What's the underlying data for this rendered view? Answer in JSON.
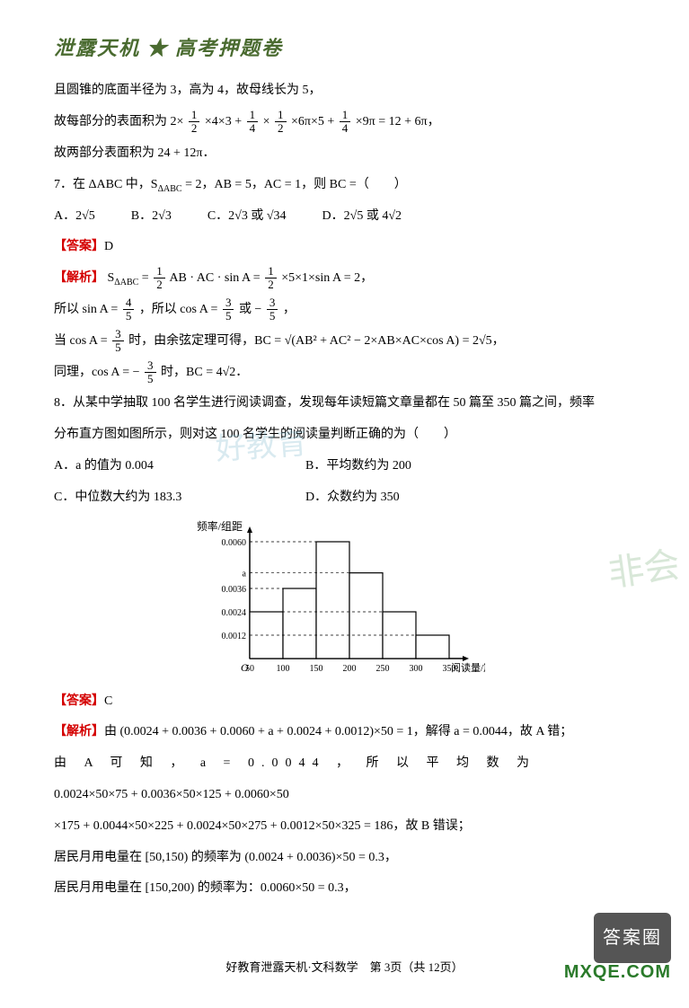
{
  "header": "泄露天机 ★ 高考押题卷",
  "p_cone1": "且圆锥的底面半径为 3，高为 4，故母线长为 5，",
  "p_cone2_a": "故每部分的表面积为 2×",
  "p_cone2_b": "×4×3 + ",
  "p_cone2_c": "×",
  "p_cone2_d": "×6π×5 + ",
  "p_cone2_e": "×9π = 12 + 6π，",
  "p_cone3": "故两部分表面积为 24 + 12π．",
  "q7": "7．在 ΔABC 中，S",
  "q7_sub": "ΔABC",
  "q7b": " = 2，AB = 5，AC = 1，则 BC =（　　）",
  "q7A": "A．2√5",
  "q7B": "B．2√3",
  "q7C": "C．2√3 或 √34",
  "q7D": "D．2√5 或 4√2",
  "ans_label": "【答案】",
  "ans7": "D",
  "exp_label": "【解析】",
  "exp7a": "S",
  "exp7a_sub": "ΔABC",
  "exp7a2": " = ",
  "exp7a3": "AB · AC · sin A = ",
  "exp7a4": "×5×1×sin A = 2，",
  "exp7b1": "所以 sin A = ",
  "exp7b2": "，所以 cos A = ",
  "exp7b3": " 或 −",
  "exp7b4": "，",
  "exp7c1": "当 cos A = ",
  "exp7c2": " 时，由余弦定理可得，BC = √(AB² + AC² − 2×AB×AC×cos A) = 2√5，",
  "exp7d1": "同理，cos A = −",
  "exp7d2": " 时，BC = 4√2．",
  "q8a": "8．从某中学抽取 100 名学生进行阅读调查，发现每年读短篇文章量都在 50 篇至 350 篇之间，频率",
  "q8b": "分布直方图如图所示，则对这 100 名学生的阅读量判断正确的为（　　）",
  "q8A": "A．a 的值为 0.004",
  "q8B": "B．平均数约为 200",
  "q8C": "C．中位数大约为 183.3",
  "q8D": "D．众数约为 350",
  "histogram": {
    "ylabel": "频率/组距",
    "xlabel": "阅读量/篇",
    "y_ticks": [
      "0.0012",
      "0.0024",
      "0.0036",
      "a",
      "0.0060"
    ],
    "x_ticks": [
      "50",
      "100",
      "150",
      "200",
      "250",
      "300",
      "350"
    ],
    "bars": [
      {
        "x": 50,
        "h": 0.0024,
        "color": "#ffffff"
      },
      {
        "x": 100,
        "h": 0.0036,
        "color": "#ffffff"
      },
      {
        "x": 150,
        "h": 0.006,
        "color": "#ffffff"
      },
      {
        "x": 200,
        "h": 0.0044,
        "color": "#ffffff"
      },
      {
        "x": 250,
        "h": 0.0024,
        "color": "#ffffff"
      },
      {
        "x": 300,
        "h": 0.0012,
        "color": "#ffffff"
      }
    ],
    "axis_color": "#000000",
    "bar_border": "#000000",
    "dash_color": "#000000",
    "ymax": 0.0066
  },
  "ans8": "C",
  "exp8a": "由 (0.0024 + 0.0036 + 0.0060 + a + 0.0024 + 0.0012)×50 = 1，解得 a = 0.0044，故 A 错；",
  "exp8b1": "由 A 可 知 ， a = 0.0044 ， 所 以 平 均 数 为",
  "exp8b2": "0.0024×50×75 + 0.0036×50×125 + 0.0060×50",
  "exp8b3": "×175 + 0.0044×50×225 + 0.0024×50×275 + 0.0012×50×325 = 186，故 B 错误；",
  "exp8c": "居民月用电量在 [50,150) 的频率为 (0.0024 + 0.0036)×50 = 0.3，",
  "exp8d": "居民月用电量在 [150,200) 的频率为：0.0060×50 = 0.3，",
  "footer": "好教育泄露天机·文科数学　第 3页（共 12页）",
  "wm_center": "好教育",
  "wm_right": "非会",
  "badge": "答案圈",
  "site": "MXQE.COM",
  "frac12n": "1",
  "frac12d": "2",
  "frac14n": "1",
  "frac14d": "4",
  "frac45n": "4",
  "frac45d": "5",
  "frac35n": "3",
  "frac35d": "5"
}
